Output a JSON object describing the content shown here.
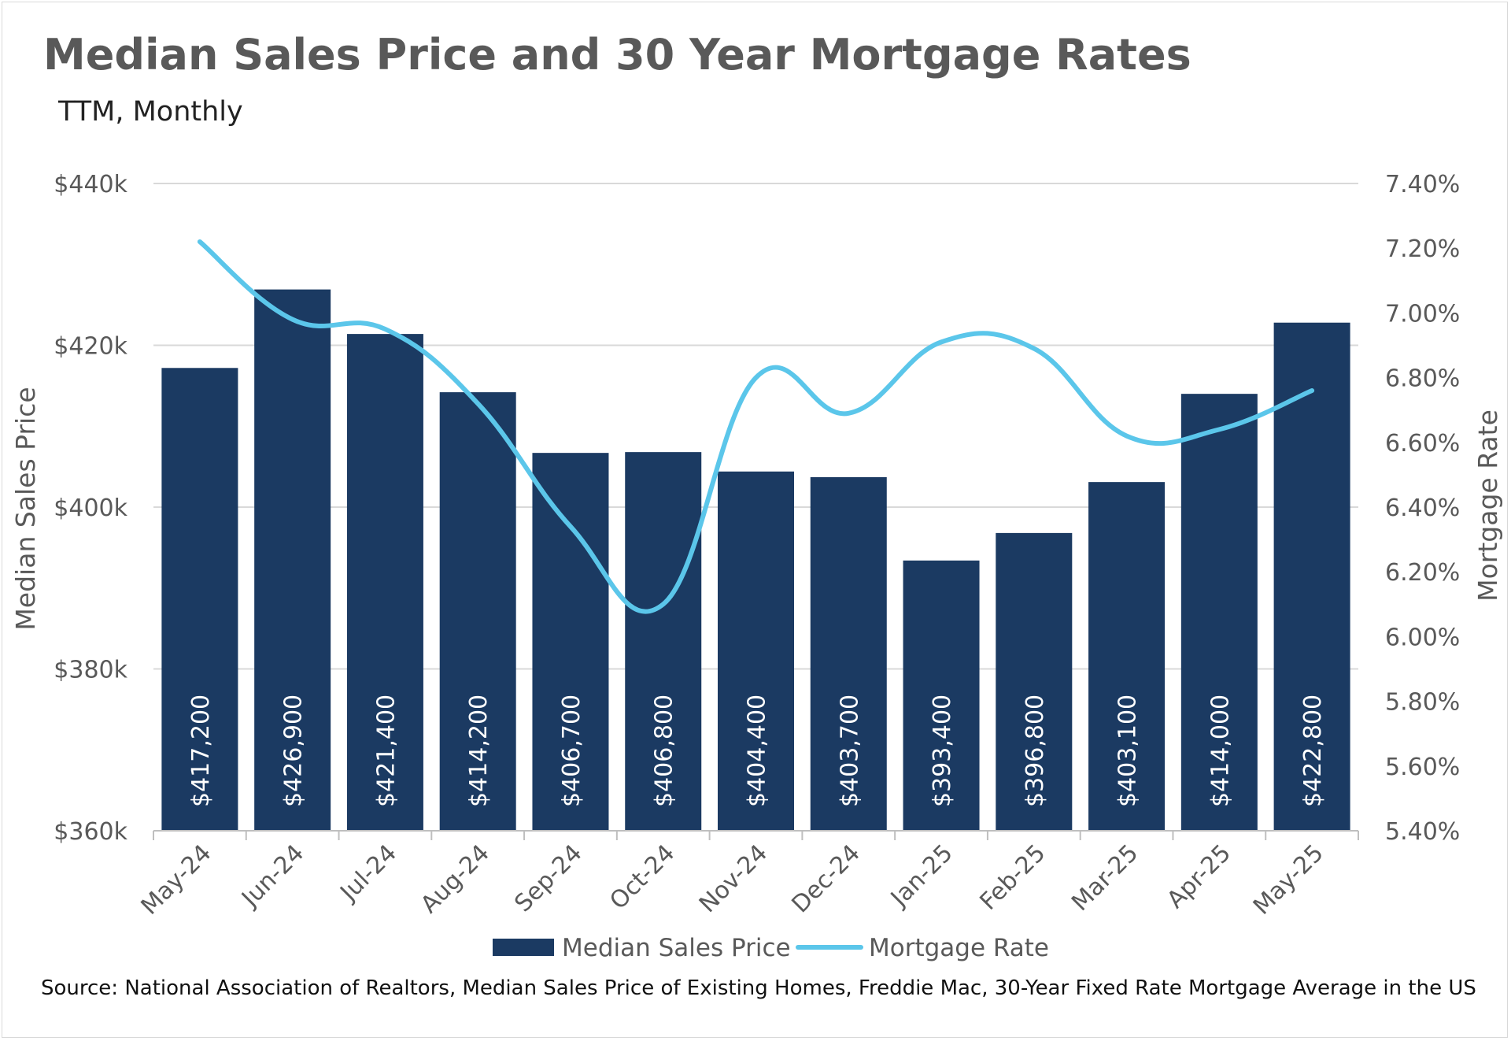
{
  "chart_data": {
    "type": "bar",
    "title": "Median Sales Price and 30 Year Mortgage Rates",
    "subtitle": "TTM, Monthly",
    "source": "Source: National Association of Realtors, Median Sales Price of Existing Homes, Freddie Mac, 30-Year Fixed Rate Mortgage Average in the US",
    "categories": [
      "May-24",
      "Jun-24",
      "Jul-24",
      "Aug-24",
      "Sep-24",
      "Oct-24",
      "Nov-24",
      "Dec-24",
      "Jan-25",
      "Feb-25",
      "Mar-25",
      "Apr-25",
      "May-25"
    ],
    "series": [
      {
        "name": "Median Sales Price",
        "type": "bar",
        "axis": "left",
        "color": "#1b3a62",
        "values": [
          417200,
          426900,
          421400,
          414200,
          406700,
          406800,
          404400,
          403700,
          393400,
          396800,
          403100,
          414000,
          422800
        ],
        "labels": [
          "$417,200",
          "$426,900",
          "$421,400",
          "$414,200",
          "$406,700",
          "$406,800",
          "$404,400",
          "$403,700",
          "$393,400",
          "$396,800",
          "$403,100",
          "$414,000",
          "$422,800"
        ]
      },
      {
        "name": "Mortgage Rate",
        "type": "line",
        "axis": "right",
        "color": "#5bc6ea",
        "values": [
          7.22,
          6.98,
          6.95,
          6.72,
          6.34,
          6.1,
          6.8,
          6.69,
          6.91,
          6.89,
          6.62,
          6.64,
          6.76
        ]
      }
    ],
    "ylabel": "Median Sales Price",
    "ylim": [
      360000,
      440000
    ],
    "yticks": [
      {
        "value": 440000,
        "label": "$440k"
      },
      {
        "value": 420000,
        "label": "$420k"
      },
      {
        "value": 400000,
        "label": "$400k"
      },
      {
        "value": 380000,
        "label": "$380k"
      },
      {
        "value": 360000,
        "label": "$360k"
      }
    ],
    "y2label": "Mortgage Rate",
    "y2lim": [
      5.4,
      7.4
    ],
    "y2ticks": [
      {
        "value": 7.4,
        "label": "7.40%"
      },
      {
        "value": 7.2,
        "label": "7.20%"
      },
      {
        "value": 7.0,
        "label": "7.00%"
      },
      {
        "value": 6.8,
        "label": "6.80%"
      },
      {
        "value": 6.6,
        "label": "6.60%"
      },
      {
        "value": 6.4,
        "label": "6.40%"
      },
      {
        "value": 6.2,
        "label": "6.20%"
      },
      {
        "value": 6.0,
        "label": "6.00%"
      },
      {
        "value": 5.8,
        "label": "5.80%"
      },
      {
        "value": 5.6,
        "label": "5.60%"
      },
      {
        "value": 5.4,
        "label": "5.40%"
      }
    ],
    "grid": true,
    "legend": "bottom",
    "gridline_color": "#d9d9d9"
  }
}
